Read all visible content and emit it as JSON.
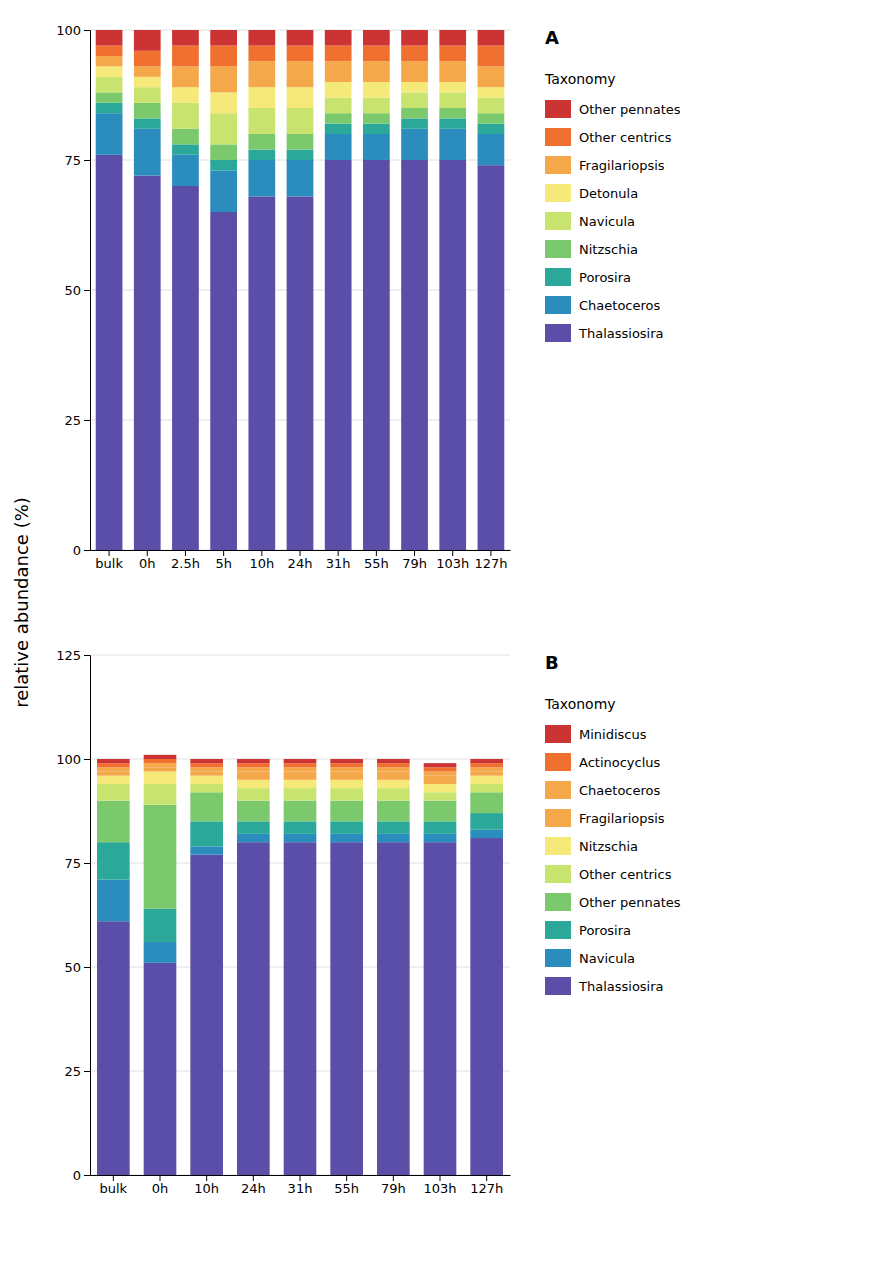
{
  "chart_data": [
    {
      "type": "bar",
      "stacked": true,
      "grid": true,
      "legend": "right",
      "title": "A",
      "ylabel": "relative abundance (%)",
      "legend_title": "Taxonomy",
      "categories": [
        "bulk",
        "0h",
        "2.5h",
        "5h",
        "10h",
        "24h",
        "31h",
        "55h",
        "79h",
        "103h",
        "127h"
      ],
      "series": [
        {
          "name": "Thalassiosira",
          "color": "#5B4EA8",
          "values": [
            76,
            72,
            70,
            65,
            68,
            68,
            75,
            75,
            75,
            75,
            74
          ]
        },
        {
          "name": "Chaetoceros",
          "color": "#2B8CBE",
          "values": [
            8,
            9,
            6,
            8,
            7,
            7,
            5,
            5,
            6,
            6,
            6
          ]
        },
        {
          "name": "Porosira",
          "color": "#2CA89A",
          "values": [
            2,
            2,
            2,
            2,
            2,
            2,
            2,
            2,
            2,
            2,
            2
          ]
        },
        {
          "name": "Nitzschia",
          "color": "#7BC96C",
          "values": [
            2,
            3,
            3,
            3,
            3,
            3,
            2,
            2,
            2,
            2,
            2
          ]
        },
        {
          "name": "Navicula",
          "color": "#C8E46E",
          "values": [
            3,
            3,
            5,
            6,
            5,
            5,
            3,
            3,
            3,
            3,
            3
          ]
        },
        {
          "name": "Detonula",
          "color": "#F5E97A",
          "values": [
            2,
            2,
            3,
            4,
            4,
            4,
            3,
            3,
            2,
            2,
            2
          ]
        },
        {
          "name": "Fragilariopsis",
          "color": "#F5A84A",
          "values": [
            2,
            2,
            4,
            5,
            5,
            5,
            4,
            4,
            4,
            4,
            4
          ]
        },
        {
          "name": "Other centrics",
          "color": "#F07030",
          "values": [
            2,
            3,
            4,
            4,
            3,
            3,
            3,
            3,
            3,
            3,
            4
          ]
        },
        {
          "name": "Other pennates",
          "color": "#CC3333",
          "values": [
            3,
            4,
            3,
            3,
            3,
            3,
            3,
            3,
            3,
            3,
            3
          ]
        }
      ],
      "ylim": [
        0,
        100
      ],
      "yticks": [
        0,
        25,
        50,
        75,
        100
      ]
    },
    {
      "type": "bar",
      "stacked": true,
      "grid": true,
      "legend": "right",
      "title": "B",
      "legend_title": "Taxonomy",
      "categories": [
        "bulk",
        "0h",
        "10h",
        "24h",
        "31h",
        "55h",
        "79h",
        "103h",
        "127h"
      ],
      "series": [
        {
          "name": "Thalassiosira",
          "color": "#5B4EA8",
          "values": [
            61,
            51,
            77,
            80,
            80,
            80,
            80,
            80,
            81
          ]
        },
        {
          "name": "Navicula",
          "color": "#2B8CBE",
          "values": [
            10,
            5,
            2,
            2,
            2,
            2,
            2,
            2,
            2
          ]
        },
        {
          "name": "Porosira",
          "color": "#2CA89A",
          "values": [
            9,
            8,
            6,
            3,
            3,
            3,
            3,
            3,
            4
          ]
        },
        {
          "name": "Other pennates",
          "color": "#7BC96C",
          "values": [
            10,
            25,
            7,
            5,
            5,
            5,
            5,
            5,
            5
          ]
        },
        {
          "name": "Other centrics",
          "color": "#C8E46E",
          "values": [
            4,
            5,
            2,
            3,
            3,
            3,
            3,
            2,
            2
          ]
        },
        {
          "name": "Nitzschia",
          "color": "#F5E97A",
          "values": [
            2,
            3,
            2,
            2,
            2,
            2,
            2,
            2,
            2
          ]
        },
        {
          "name": "Fragilariopsis",
          "color": "#F5A84A",
          "values": [
            1,
            1,
            1,
            2,
            2,
            2,
            2,
            2,
            1
          ]
        },
        {
          "name": "Chaetoceros",
          "color": "#F5A84A",
          "values": [
            1,
            1,
            1,
            1,
            1,
            1,
            1,
            1,
            1
          ]
        },
        {
          "name": "Actinocyclus",
          "color": "#F07030",
          "values": [
            1,
            1,
            1,
            1,
            1,
            1,
            1,
            1,
            1
          ]
        },
        {
          "name": "Minidiscus",
          "color": "#CC3333",
          "values": [
            1,
            1,
            1,
            1,
            1,
            1,
            1,
            1,
            1
          ]
        }
      ],
      "ylim": [
        0,
        125
      ],
      "yticks": [
        0,
        25,
        50,
        75,
        100,
        125
      ]
    }
  ]
}
